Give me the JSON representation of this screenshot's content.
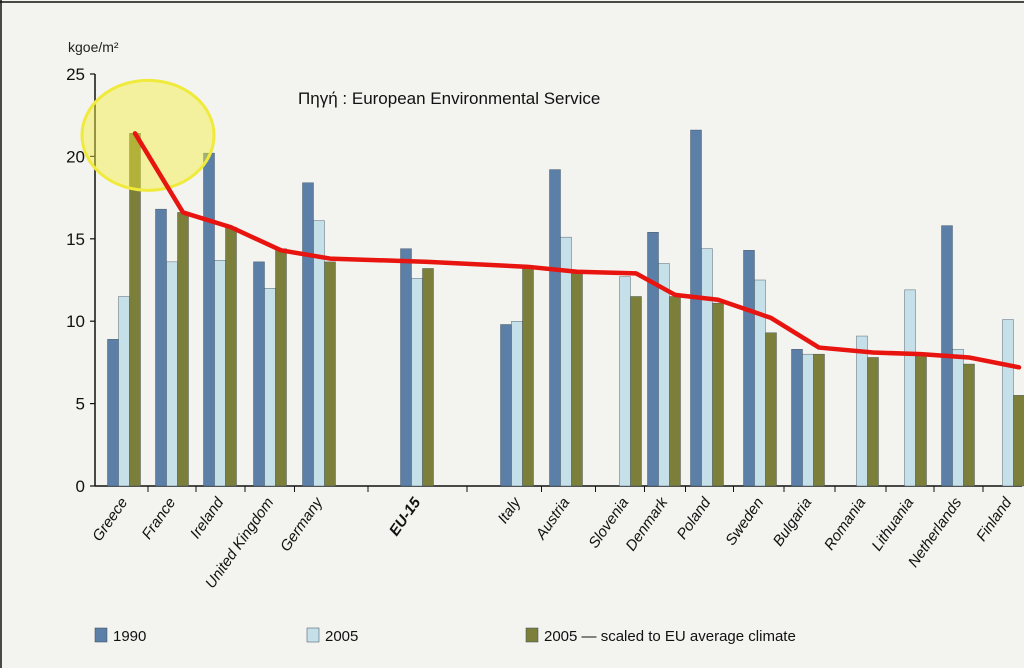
{
  "chart_data": {
    "type": "bar",
    "ylabel": "kgoe/m²",
    "ylim": [
      0,
      25
    ],
    "yticks": [
      0,
      5,
      10,
      15,
      20,
      25
    ],
    "source_note": "Πηγή : European Environmental Service",
    "categories": [
      "Greece",
      "France",
      "Ireland",
      "United Kingdom",
      "Germany",
      "EU-15",
      "Italy",
      "Austria",
      "Slovenia",
      "Denmark",
      "Poland",
      "Sweden",
      "Bulgaria",
      "Romania",
      "Lithuania",
      "Netherlands",
      "Finland"
    ],
    "highlight_category": "EU-15",
    "series": [
      {
        "name": "1990",
        "color": "#5b7fa6",
        "values": [
          8.9,
          16.8,
          20.2,
          13.6,
          18.4,
          14.4,
          9.8,
          19.2,
          null,
          15.4,
          21.6,
          14.3,
          8.3,
          null,
          null,
          15.8,
          null
        ]
      },
      {
        "name": "2005",
        "color": "#c5e0e8",
        "values": [
          11.5,
          13.6,
          13.7,
          12.0,
          16.1,
          12.6,
          10.0,
          15.1,
          12.7,
          13.5,
          14.4,
          12.5,
          8.0,
          9.1,
          11.9,
          8.3,
          10.1
        ]
      },
      {
        "name": "2005 — scaled to EU average climate",
        "color": "#7c7f3a",
        "values": [
          21.4,
          16.6,
          15.7,
          14.4,
          13.6,
          13.2,
          13.2,
          13.0,
          11.5,
          11.5,
          11.1,
          9.3,
          8.0,
          7.8,
          7.9,
          7.4,
          5.5
        ]
      }
    ],
    "trend_line": {
      "color": "#e8140f",
      "values": [
        21.4,
        16.6,
        15.7,
        14.3,
        13.8,
        13.6,
        13.3,
        13.0,
        12.9,
        11.6,
        11.3,
        10.2,
        8.4,
        8.1,
        8.0,
        7.8,
        7.2
      ]
    },
    "highlight_circle": {
      "category": "Greece",
      "color": "#f0ea3c"
    },
    "legend_position": "bottom"
  }
}
